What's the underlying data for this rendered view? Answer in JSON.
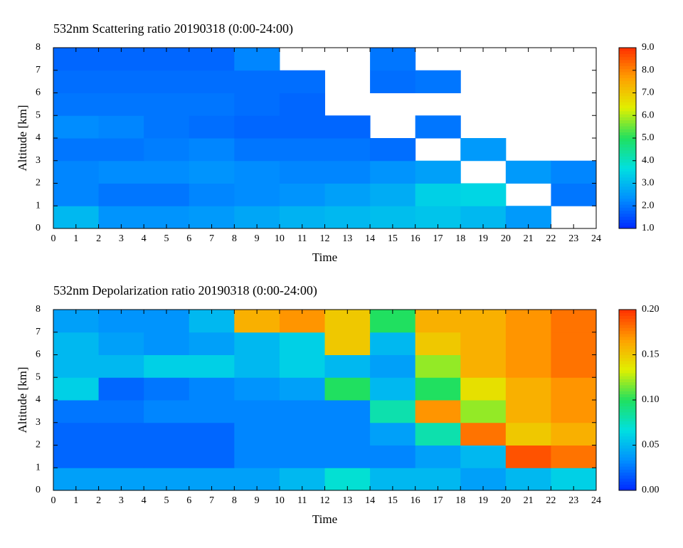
{
  "chart_data": [
    {
      "type": "heatmap",
      "title": "532nm Scattering ratio  20190318 (0:00-24:00)",
      "xlabel": "Time",
      "ylabel": "Altitude [km]",
      "xlim": [
        0,
        24
      ],
      "xticks": [
        0,
        1,
        2,
        3,
        4,
        5,
        6,
        7,
        8,
        9,
        10,
        11,
        12,
        13,
        14,
        15,
        16,
        17,
        18,
        19,
        20,
        21,
        22,
        23,
        24
      ],
      "ylim": [
        0,
        8
      ],
      "yticks": [
        0,
        1,
        2,
        3,
        4,
        5,
        6,
        7,
        8
      ],
      "xbins": [
        0,
        2,
        4,
        6,
        8,
        10,
        12,
        14,
        16,
        18,
        20,
        22,
        24
      ],
      "ybins": [
        0,
        1,
        2,
        3,
        4,
        5,
        6,
        7,
        8
      ],
      "values": [
        [
          3.0,
          2.4,
          2.4,
          2.5,
          2.7,
          2.9,
          3.0,
          3.1,
          3.2,
          3.0,
          2.5,
          null
        ],
        [
          2.2,
          2.0,
          2.0,
          2.2,
          2.3,
          2.4,
          2.6,
          2.8,
          3.4,
          3.5,
          null,
          2.0
        ],
        [
          2.2,
          2.3,
          2.3,
          2.4,
          2.3,
          2.2,
          2.2,
          2.4,
          2.6,
          null,
          2.5,
          2.2
        ],
        [
          2.0,
          2.0,
          2.1,
          2.2,
          2.0,
          2.0,
          2.0,
          1.9,
          null,
          2.5,
          null,
          null
        ],
        [
          2.3,
          2.2,
          2.0,
          1.9,
          1.8,
          1.8,
          1.8,
          null,
          2.0,
          null,
          null,
          null
        ],
        [
          2.0,
          2.0,
          2.0,
          2.0,
          1.9,
          1.8,
          null,
          null,
          null,
          null,
          null,
          null
        ],
        [
          1.9,
          1.9,
          1.9,
          1.9,
          1.9,
          1.9,
          null,
          1.9,
          2.0,
          null,
          null,
          null
        ],
        [
          1.8,
          1.8,
          1.8,
          1.8,
          2.2,
          null,
          null,
          2.0,
          null,
          null,
          null,
          null
        ]
      ],
      "clim": [
        1.0,
        9.0
      ],
      "cticks": [
        {
          "value": 1,
          "label": "1.0"
        },
        {
          "value": 2,
          "label": "2.0"
        },
        {
          "value": 3,
          "label": "3.0"
        },
        {
          "value": 4,
          "label": "4.0"
        },
        {
          "value": 5,
          "label": "5.0"
        },
        {
          "value": 6,
          "label": "6.0"
        },
        {
          "value": 7,
          "label": "7.0"
        },
        {
          "value": 8,
          "label": "8.0"
        },
        {
          "value": 9,
          "label": "9.0"
        }
      ],
      "colormap": [
        "#0028ff",
        "#0090ff",
        "#00e0e0",
        "#20e060",
        "#e0f000",
        "#ffa000",
        "#ff3000"
      ]
    },
    {
      "type": "heatmap",
      "title": "532nm Depolarization ratio  20190318 (0:00-24:00)",
      "xlabel": "Time",
      "ylabel": "Altitude [km]",
      "xlim": [
        0,
        24
      ],
      "xticks": [
        0,
        1,
        2,
        3,
        4,
        5,
        6,
        7,
        8,
        9,
        10,
        11,
        12,
        13,
        14,
        15,
        16,
        17,
        18,
        19,
        20,
        21,
        22,
        23,
        24
      ],
      "ylim": [
        0,
        8
      ],
      "yticks": [
        0,
        1,
        2,
        3,
        4,
        5,
        6,
        7,
        8
      ],
      "xbins": [
        0,
        2,
        4,
        6,
        8,
        10,
        12,
        14,
        16,
        18,
        20,
        22,
        24
      ],
      "ybins": [
        0,
        1,
        2,
        3,
        4,
        5,
        6,
        7,
        8
      ],
      "values": [
        [
          0.04,
          0.04,
          0.04,
          0.04,
          0.04,
          0.05,
          0.07,
          0.05,
          0.05,
          0.04,
          0.05,
          0.06
        ],
        [
          0.02,
          0.02,
          0.02,
          0.02,
          0.03,
          0.03,
          0.03,
          0.03,
          0.04,
          0.05,
          0.19,
          0.18
        ],
        [
          0.02,
          0.02,
          0.02,
          0.02,
          0.03,
          0.03,
          0.03,
          0.04,
          0.08,
          0.18,
          0.15,
          0.16
        ],
        [
          0.025,
          0.025,
          0.03,
          0.03,
          0.03,
          0.03,
          0.03,
          0.08,
          0.17,
          0.12,
          0.16,
          0.17
        ],
        [
          0.06,
          0.02,
          0.025,
          0.03,
          0.035,
          0.04,
          0.1,
          0.05,
          0.1,
          0.14,
          0.16,
          0.17
        ],
        [
          0.05,
          0.05,
          0.06,
          0.06,
          0.05,
          0.06,
          0.05,
          0.04,
          0.12,
          0.16,
          0.17,
          0.18
        ],
        [
          0.05,
          0.04,
          0.035,
          0.04,
          0.05,
          0.06,
          0.15,
          0.05,
          0.15,
          0.16,
          0.17,
          0.18
        ],
        [
          0.04,
          0.035,
          0.035,
          0.05,
          0.16,
          0.17,
          0.15,
          0.1,
          0.16,
          0.16,
          0.17,
          0.18
        ]
      ],
      "clim": [
        0.0,
        0.2
      ],
      "cticks": [
        {
          "value": 0,
          "label": "0.00"
        },
        {
          "value": 0.05,
          "label": "0.05"
        },
        {
          "value": 0.1,
          "label": "0.10"
        },
        {
          "value": 0.15,
          "label": "0.15"
        },
        {
          "value": 0.2,
          "label": "0.20"
        }
      ],
      "colormap": [
        "#0028ff",
        "#0090ff",
        "#00e0e0",
        "#20e060",
        "#e0f000",
        "#ffa000",
        "#ff3000"
      ]
    }
  ]
}
